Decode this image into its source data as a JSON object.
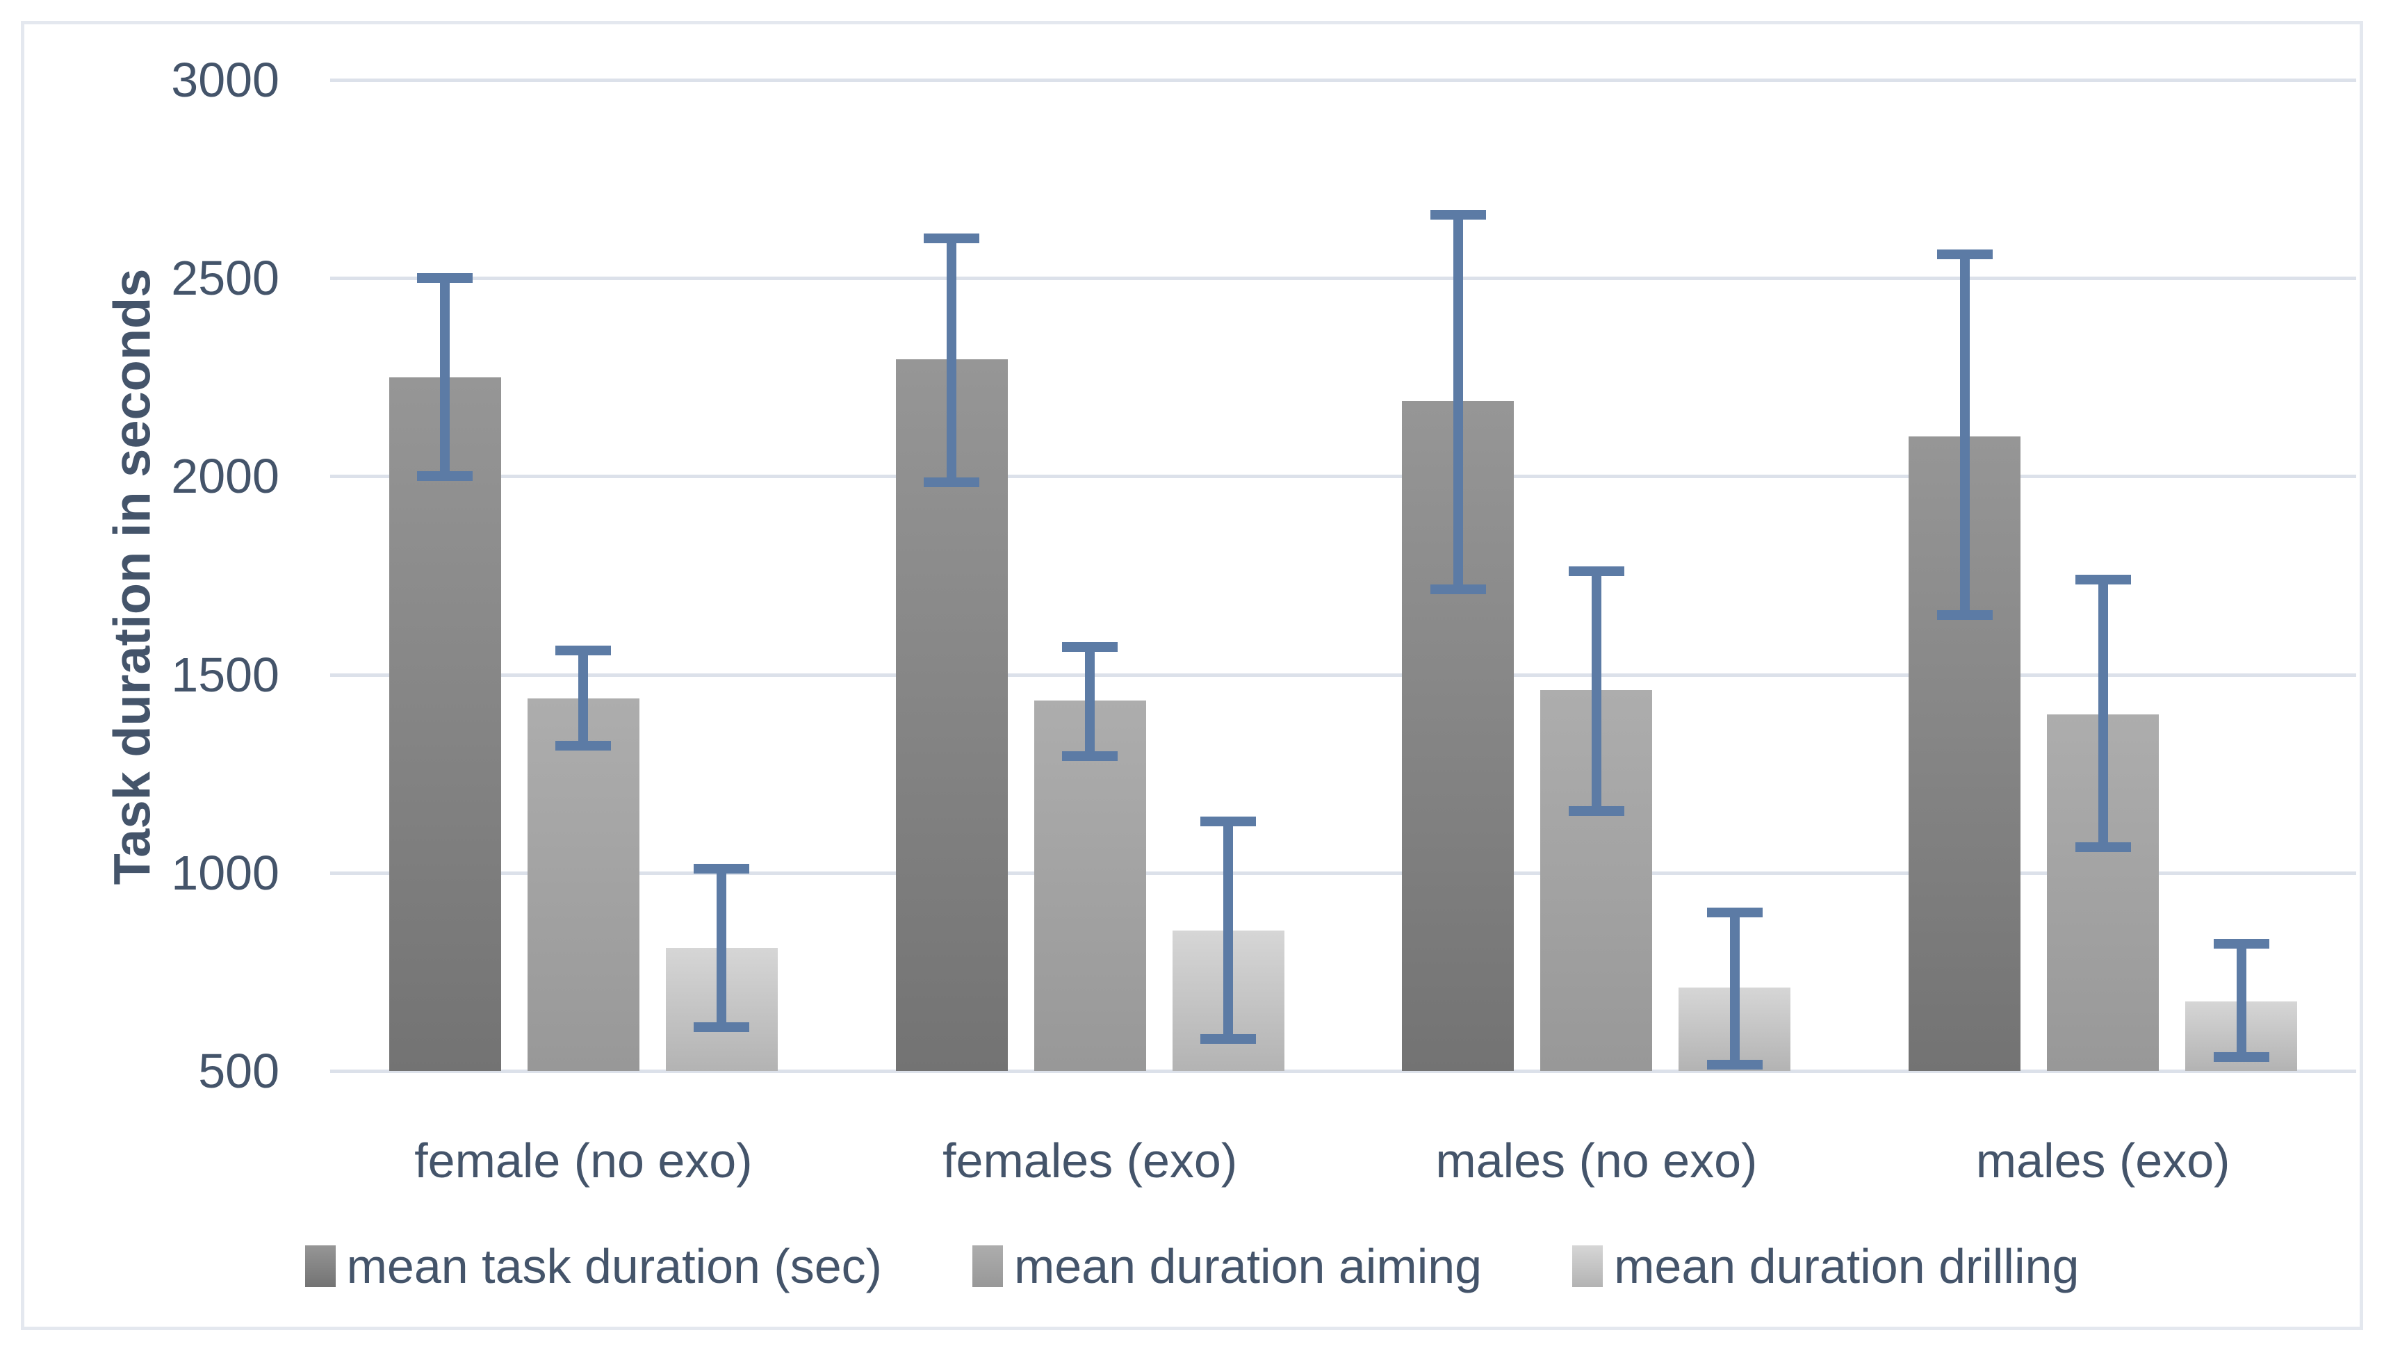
{
  "ui": {
    "background_color": "#FFFFFF",
    "frame_border_color": "#E4E8EF",
    "text_color": "#44546A",
    "gridline_color": "#DCE1EA"
  },
  "chart_data": {
    "type": "bar",
    "title": "",
    "xlabel": "",
    "ylabel": "Task duration in seconds",
    "ylim": [
      500,
      3000
    ],
    "yticks": [
      500,
      1000,
      1500,
      2000,
      2500,
      3000
    ],
    "grid": true,
    "legend_position": "bottom",
    "error_bar_color": "#5C7BA5",
    "categories": [
      "female (no exo)",
      "females (exo)",
      "males (no exo)",
      "males (exo)"
    ],
    "series": [
      {
        "name": "mean task duration (sec)",
        "fill_top": "#969696",
        "fill_bottom": "#737373",
        "values": [
          2250,
          2295,
          2190,
          2100
        ],
        "error_low": [
          2000,
          1985,
          1715,
          1650
        ],
        "error_high": [
          2500,
          2600,
          2660,
          2560
        ]
      },
      {
        "name": "mean duration aiming",
        "fill_top": "#ADADAD",
        "fill_bottom": "#989898",
        "values": [
          1440,
          1435,
          1460,
          1400
        ],
        "error_low": [
          1320,
          1295,
          1155,
          1065
        ],
        "error_high": [
          1560,
          1570,
          1760,
          1740
        ]
      },
      {
        "name": "mean duration drilling",
        "fill_top": "#D6D6D6",
        "fill_bottom": "#B3B3B3",
        "values": [
          810,
          855,
          710,
          675
        ],
        "error_low": [
          610,
          580,
          515,
          535
        ],
        "error_high": [
          1010,
          1130,
          900,
          820
        ]
      }
    ]
  }
}
